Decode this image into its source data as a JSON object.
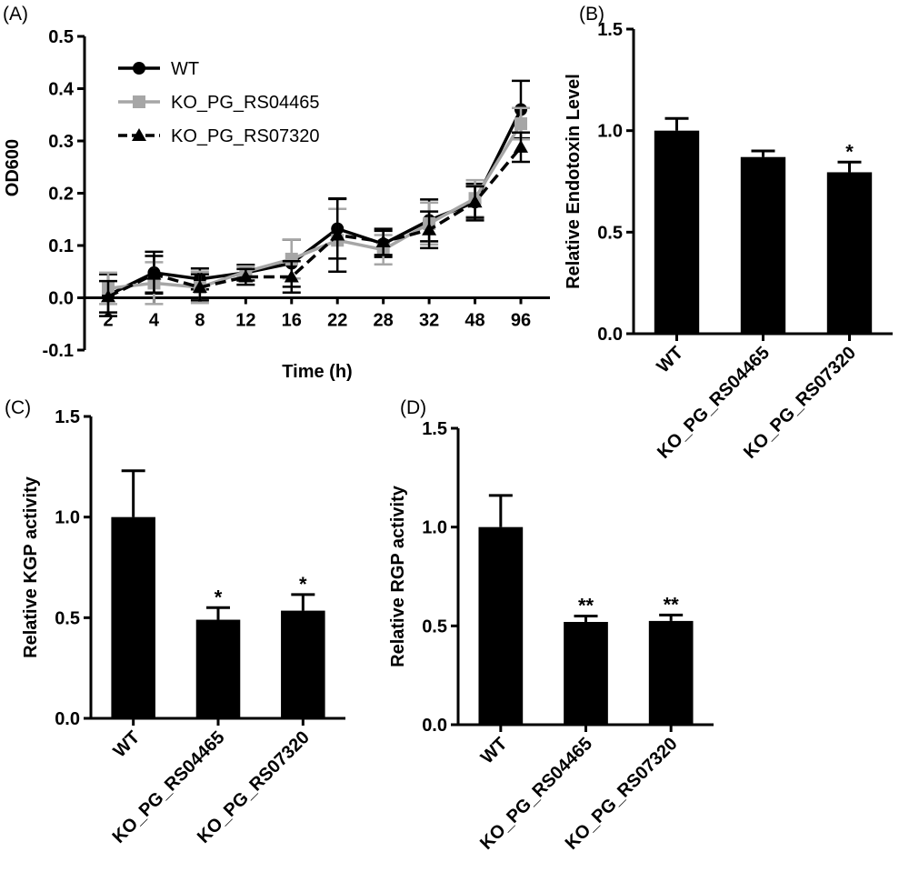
{
  "chart_data": [
    {
      "panel": "(A)",
      "type": "line",
      "xlabel": "Time (h)",
      "ylabel": "OD600",
      "categories": [
        "2",
        "4",
        "8",
        "12",
        "16",
        "22",
        "28",
        "32",
        "48",
        "96"
      ],
      "ylim": [
        -0.1,
        0.5
      ],
      "yticks": [
        "-0.1",
        "0.0",
        "0.1",
        "0.2",
        "0.3",
        "0.4",
        "0.5"
      ],
      "legend_position": "top-left",
      "series": [
        {
          "name": "WT",
          "color": "#000000",
          "marker": "circle",
          "dash": "solid",
          "values": [
            0.005,
            0.048,
            0.036,
            0.048,
            0.066,
            0.132,
            0.103,
            0.148,
            0.183,
            0.36
          ],
          "errors": [
            0.04,
            0.04,
            0.02,
            0.015,
            0.045,
            0.057,
            0.025,
            0.04,
            0.035,
            0.055
          ]
        },
        {
          "name": "KO_PG_RS04465",
          "color": "#a6a6a6",
          "marker": "square",
          "dash": "solid",
          "values": [
            0.018,
            0.028,
            0.02,
            0.05,
            0.074,
            0.11,
            0.092,
            0.142,
            0.19,
            0.333
          ],
          "errors": [
            0.03,
            0.04,
            0.03,
            0.01,
            0.037,
            0.06,
            0.028,
            0.04,
            0.035,
            0.03
          ]
        },
        {
          "name": "KO_PG_RS07320",
          "color": "#000000",
          "marker": "triangle",
          "dash": "dashed",
          "values": [
            0.002,
            0.045,
            0.02,
            0.04,
            0.04,
            0.12,
            0.107,
            0.13,
            0.183,
            0.288
          ],
          "errors": [
            0.03,
            0.035,
            0.025,
            0.015,
            0.03,
            0.07,
            0.025,
            0.035,
            0.03,
            0.028
          ]
        }
      ]
    },
    {
      "panel": "(B)",
      "type": "bar",
      "ylabel": "Relative Endotoxin  Level",
      "categories": [
        "WT",
        "KO_PG_RS04465",
        "KO_PG_RS07320"
      ],
      "values": [
        1.0,
        0.87,
        0.795
      ],
      "errors": [
        0.06,
        0.03,
        0.05
      ],
      "significance": [
        "",
        "",
        "*"
      ],
      "ylim": [
        0.0,
        1.5
      ],
      "yticks": [
        "0.0",
        "0.5",
        "1.0",
        "1.5"
      ]
    },
    {
      "panel": "(C)",
      "type": "bar",
      "ylabel": "Relative KGP activity",
      "categories": [
        "WT",
        "KO_PG_RS04465",
        "KO_PG_RS07320"
      ],
      "values": [
        1.0,
        0.49,
        0.535
      ],
      "errors": [
        0.23,
        0.06,
        0.08
      ],
      "significance": [
        "",
        "*",
        "*"
      ],
      "ylim": [
        0.0,
        1.5
      ],
      "yticks": [
        "0.0",
        "0.5",
        "1.0",
        "1.5"
      ]
    },
    {
      "panel": "(D)",
      "type": "bar",
      "ylabel": "Relative RGP activity",
      "categories": [
        "WT",
        "KO_PG_RS04465",
        "KO_PG_RS07320"
      ],
      "values": [
        1.0,
        0.52,
        0.525
      ],
      "errors": [
        0.16,
        0.03,
        0.03
      ],
      "significance": [
        "",
        "**",
        "**"
      ],
      "ylim": [
        0.0,
        1.5
      ],
      "yticks": [
        "0.0",
        "0.5",
        "1.0",
        "1.5"
      ]
    }
  ]
}
